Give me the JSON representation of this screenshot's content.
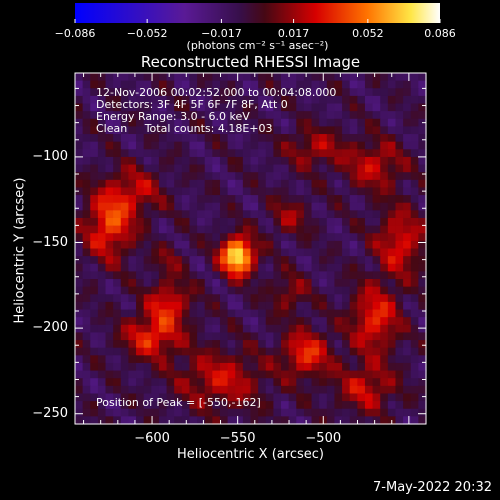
{
  "chart_data": {
    "type": "heatmap",
    "title": "Reconstructed RHESSI Image",
    "xlabel": "Heliocentric X (arcsec)",
    "ylabel": "Heliocentric Y (arcsec)",
    "xlim": [
      -645,
      -440
    ],
    "ylim": [
      -256,
      -51
    ],
    "x_ticks": [
      -600,
      -550,
      -500
    ],
    "x_tick_labels": [
      "−600",
      "−550",
      "−500"
    ],
    "y_ticks": [
      -100,
      -150,
      -200,
      -250
    ],
    "y_tick_labels": [
      "−100",
      "−150",
      "−200",
      "−250"
    ],
    "colorbar": {
      "min": -0.086,
      "max": 0.086,
      "ticks": [
        -0.086,
        -0.052,
        -0.017,
        0.017,
        0.052,
        0.086
      ],
      "tick_labels": [
        "−0.086",
        "−0.052",
        "−0.017",
        "0.017",
        "0.052",
        "0.086"
      ],
      "units": "(photons cm⁻² s⁻¹ asec⁻²)",
      "colors": [
        "#0000ff",
        "#5a1a9a",
        "#2a0a30",
        "#d00000",
        "#ff7000",
        "#ffff60",
        "#ffffff"
      ]
    },
    "annotations": [
      "12-Nov-2006 00:02:52.000 to 00:04:08.000",
      "Detectors: 3F 4F 5F 6F 7F 8F, Att 0",
      "Energy Range: 3.0 - 6.0 keV",
      "Clean     Total counts: 4.18E+03"
    ],
    "peak_label": "Position of Peak = [-550,-162]",
    "peak": {
      "x": -550,
      "y": -162
    },
    "sources": [
      {
        "x": -550,
        "y": -158,
        "sx": 7,
        "sy": 8,
        "amp": 0.09
      },
      {
        "x": -625,
        "y": -140,
        "sx": 10,
        "sy": 14,
        "amp": 0.05
      },
      {
        "x": -610,
        "y": -120,
        "sx": 12,
        "sy": 10,
        "amp": 0.03
      },
      {
        "x": -590,
        "y": -185,
        "sx": 9,
        "sy": 9,
        "amp": 0.04
      },
      {
        "x": -600,
        "y": -205,
        "sx": 12,
        "sy": 9,
        "amp": 0.045
      },
      {
        "x": -560,
        "y": -230,
        "sx": 18,
        "sy": 12,
        "amp": 0.035
      },
      {
        "x": -510,
        "y": -215,
        "sx": 10,
        "sy": 10,
        "amp": 0.045
      },
      {
        "x": -520,
        "y": -180,
        "sx": 8,
        "sy": 8,
        "amp": 0.025
      },
      {
        "x": -470,
        "y": -195,
        "sx": 10,
        "sy": 14,
        "amp": 0.045
      },
      {
        "x": -455,
        "y": -150,
        "sx": 10,
        "sy": 14,
        "amp": 0.04
      },
      {
        "x": -470,
        "y": -105,
        "sx": 12,
        "sy": 10,
        "amp": 0.035
      },
      {
        "x": -505,
        "y": -95,
        "sx": 12,
        "sy": 8,
        "amp": 0.03
      },
      {
        "x": -520,
        "y": -135,
        "sx": 8,
        "sy": 8,
        "amp": 0.025
      },
      {
        "x": -475,
        "y": -235,
        "sx": 12,
        "sy": 10,
        "amp": 0.035
      },
      {
        "x": -590,
        "y": -160,
        "sx": 6,
        "sy": 6,
        "amp": 0.02
      }
    ]
  },
  "footer": {
    "timestamp": "7-May-2022 20:32"
  }
}
